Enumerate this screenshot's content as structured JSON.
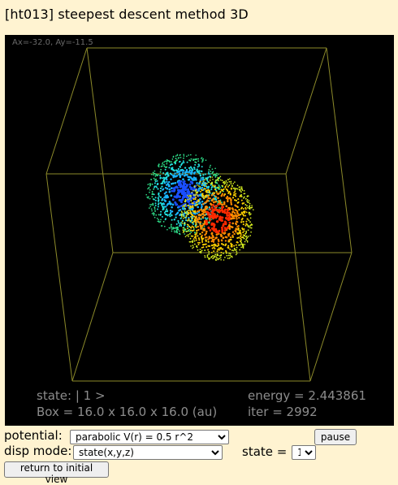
{
  "title": "[ht013] steepest descent method 3D",
  "viewport": {
    "rotation_readout": "Ax=-32.0, Ay=-11.5",
    "state_text": "state: | 1 >",
    "box_text": "Box = 16.0 x 16.0 x 16.0 (au)",
    "energy_text": "energy = 2.443861",
    "iter_text": "iter = 2992",
    "box_color": "#8c8a2a",
    "lobe_colors": {
      "negative": [
        "#1a4fff",
        "#19b5ff",
        "#22e0e0",
        "#2fe08a"
      ],
      "positive": [
        "#ff2a00",
        "#ff8c00",
        "#ffd200",
        "#d8f020"
      ]
    }
  },
  "controls": {
    "potential_label": "potential:",
    "potential_value": "parabolic V(r) = 0.5 r^2",
    "disp_mode_label": "disp mode:",
    "disp_mode_value": "state(x,y,z)",
    "state_label": "state =",
    "state_value": "1",
    "pause_label": "pause",
    "reset_label": "return to initial view"
  }
}
